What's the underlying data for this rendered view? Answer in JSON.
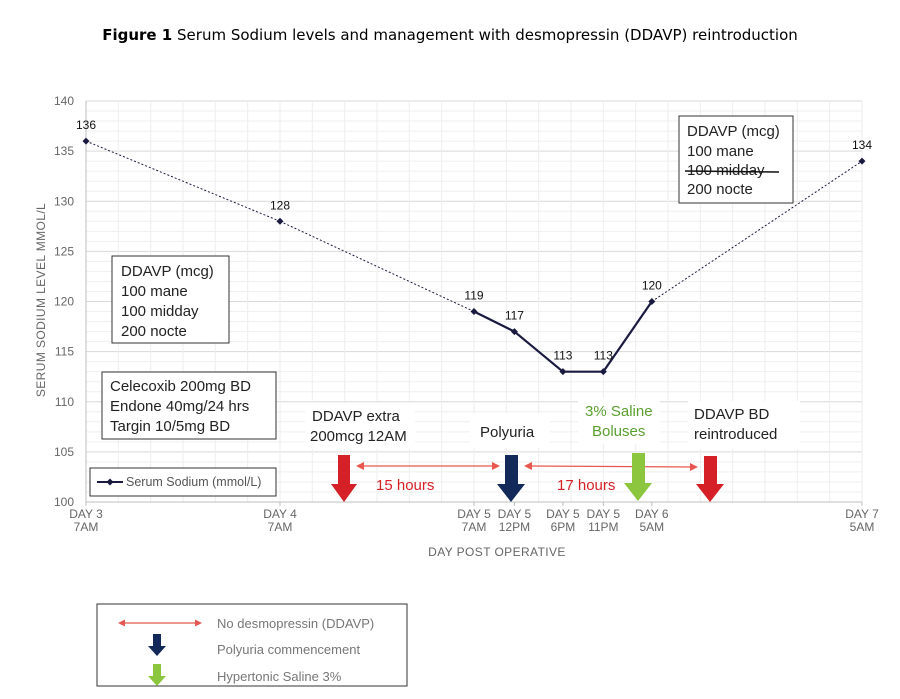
{
  "figure": {
    "label": "Figure 1",
    "caption": "Serum Sodium levels and management with desmopressin (DDAVP) reintroduction"
  },
  "chart_data": {
    "type": "line",
    "xlabel": "DAY POST OPERATIVE",
    "ylabel": "SERUM SODIUM LEVEL MMOL/L",
    "ylim": [
      100,
      140
    ],
    "yticks": [
      100,
      105,
      110,
      115,
      120,
      125,
      130,
      135,
      140
    ],
    "x_hours": [
      0,
      24,
      48,
      53,
      59,
      64,
      70,
      96
    ],
    "x_ticks": [
      {
        "h": 0,
        "l1": "DAY 3",
        "l2": "7AM"
      },
      {
        "h": 24,
        "l1": "DAY 4",
        "l2": "7AM"
      },
      {
        "h": 48,
        "l1": "DAY 5",
        "l2": "7AM"
      },
      {
        "h": 53,
        "l1": "DAY 5",
        "l2": "12PM"
      },
      {
        "h": 59,
        "l1": "DAY 5",
        "l2": "6PM"
      },
      {
        "h": 64,
        "l1": "DAY 5",
        "l2": "11PM"
      },
      {
        "h": 70,
        "l1": "DAY 6",
        "l2": "5AM"
      },
      {
        "h": 96,
        "l1": "DAY 7",
        "l2": "5AM"
      }
    ],
    "series": [
      {
        "name": "Serum Sodium (mmol/L)",
        "values": [
          136,
          128,
          119,
          117,
          113,
          113,
          120,
          134
        ],
        "color": "#1a1a40"
      }
    ],
    "dotted_segments": [
      [
        0,
        1
      ],
      [
        1,
        2
      ],
      [
        6,
        7
      ]
    ],
    "grid": true,
    "legend": {
      "position": "bottom-left",
      "label": "Serum Sodium (mmol/L)"
    }
  },
  "annotations": {
    "box_initial": [
      "DDAVP (mcg)",
      "100 mane",
      "100 midday",
      "200 nocte"
    ],
    "box_final": [
      "DDAVP (mcg)",
      "100 mane",
      "100 midday",
      "200 nocte"
    ],
    "box_meds": [
      "Celecoxib 200mg BD",
      "Endone 40mg/24 hrs",
      "Targin 10/5mg BD"
    ],
    "ddavp_extra": [
      "DDAVP extra",
      "200mcg 12AM"
    ],
    "polyuria": "Polyuria",
    "saline": [
      "3% Saline",
      "Boluses"
    ],
    "reintroduced": [
      "DDAVP BD",
      "reintroduced"
    ],
    "gap1": "15 hours",
    "gap2": "17 hours",
    "colors": {
      "red": "#d62027",
      "navy": "#12295a",
      "green": "#8cc63f",
      "green_text": "#5a9e2f",
      "arrow_line": "#e8574f"
    }
  },
  "key": {
    "no_ddavp": "No desmopressin (DDAVP)",
    "polyuria": "Polyuria commencement",
    "saline": "Hypertonic Saline 3%"
  }
}
